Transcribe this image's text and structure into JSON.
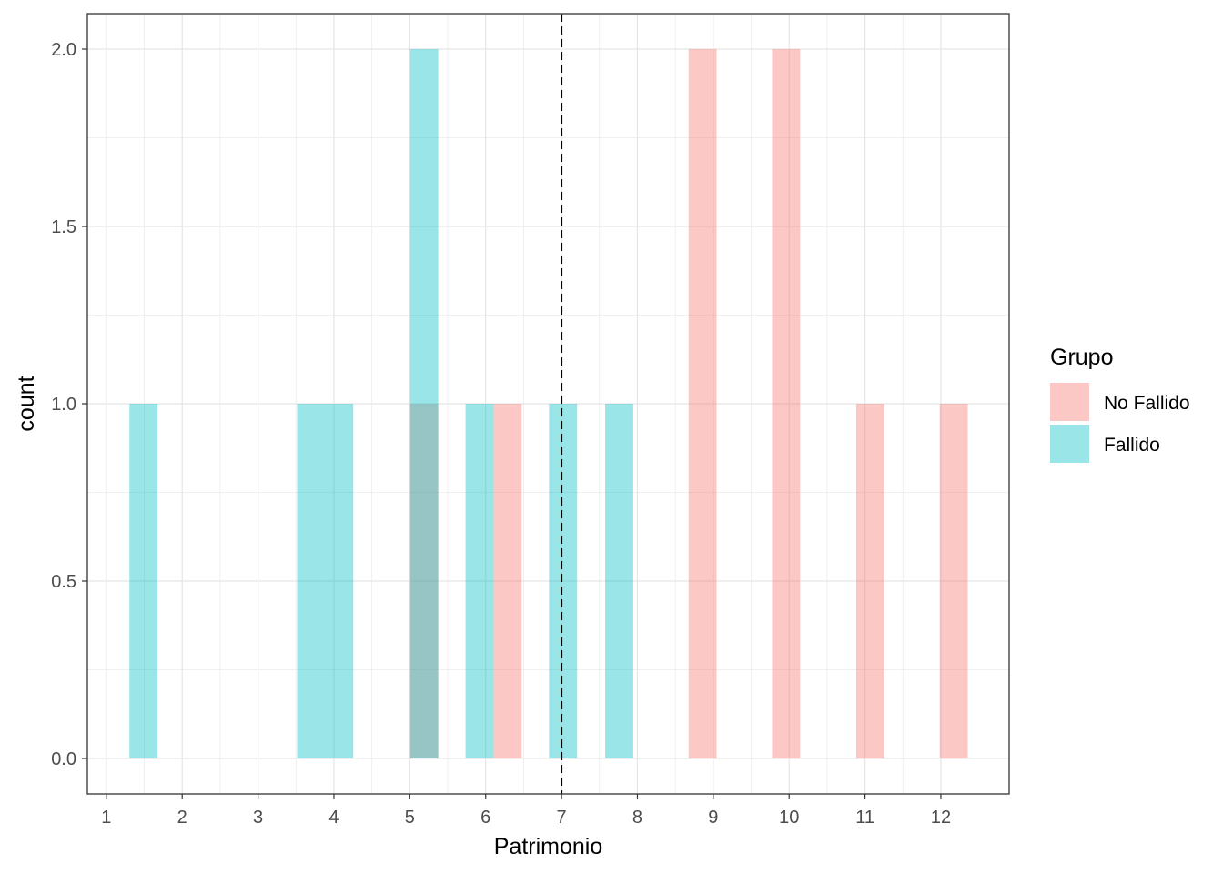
{
  "chart_data": {
    "type": "bar",
    "subtype": "overlapping-histogram",
    "title": "",
    "xlabel": "Patrimonio",
    "ylabel": "count",
    "xlim": [
      0.75,
      12.9
    ],
    "ylim": [
      -0.1,
      2.1
    ],
    "xticks": [
      1,
      2,
      3,
      4,
      5,
      6,
      7,
      8,
      9,
      10,
      11,
      12
    ],
    "xtick_labels": [
      "1",
      "2",
      "3",
      "4",
      "5",
      "6",
      "7",
      "8",
      "9",
      "10",
      "11",
      "12"
    ],
    "yticks": [
      0,
      0.5,
      1,
      1.5,
      2
    ],
    "ytick_labels": [
      "0.0",
      "0.5",
      "1.0",
      "1.5",
      "2.0"
    ],
    "grid": true,
    "bin_width": 0.37,
    "fill_opacity": 0.4,
    "vline": {
      "x": 7,
      "style": "dashed",
      "color": "#000000"
    },
    "legend": {
      "title": "Grupo",
      "position": "right"
    },
    "series": [
      {
        "name": "No Fallido",
        "color": "#F8766D",
        "bins": [
          {
            "x": 5.19,
            "count": 1
          },
          {
            "x": 6.29,
            "count": 1
          },
          {
            "x": 8.86,
            "count": 2
          },
          {
            "x": 9.96,
            "count": 2
          },
          {
            "x": 11.07,
            "count": 1
          },
          {
            "x": 12.17,
            "count": 1
          }
        ]
      },
      {
        "name": "Fallido",
        "color": "#00BFC4",
        "bins": [
          {
            "x": 1.49,
            "count": 1
          },
          {
            "x": 3.7,
            "count": 1
          },
          {
            "x": 4.07,
            "count": 1
          },
          {
            "x": 5.19,
            "count": 2
          },
          {
            "x": 5.92,
            "count": 1
          },
          {
            "x": 7.02,
            "count": 1
          },
          {
            "x": 7.76,
            "count": 1
          }
        ]
      }
    ]
  }
}
